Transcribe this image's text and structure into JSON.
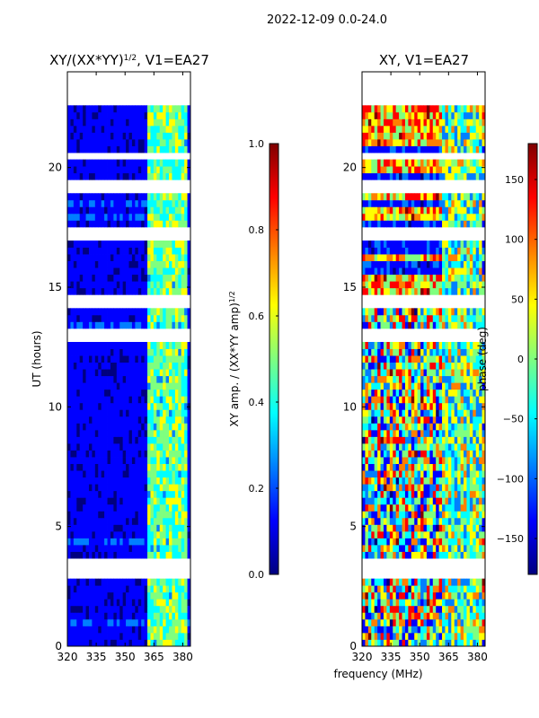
{
  "suptitle": "2022-12-09 0.0-24.0",
  "colors": {
    "jet": [
      "#00007f",
      "#0000ff",
      "#007fff",
      "#00ffff",
      "#7fff7f",
      "#ffff00",
      "#ff7f00",
      "#ff0000",
      "#7f0000"
    ],
    "background": "#ffffff"
  },
  "chart_data": [
    {
      "type": "heatmap",
      "id": "amp",
      "title_base": "XY/(XX*YY)",
      "title_exp": "1/2",
      "title_tail": ", V1=EA27",
      "ylabel": "UT (hours)",
      "xlim": [
        320,
        384
      ],
      "ylim": [
        0,
        24
      ],
      "xticks": [
        320,
        335,
        350,
        365,
        380
      ],
      "xtick_labels": [
        "320",
        "335",
        "350",
        "365",
        "380"
      ],
      "yticks": [
        0,
        5,
        10,
        15,
        20
      ],
      "ytick_labels": [
        "0",
        "5",
        "10",
        "15",
        "20"
      ],
      "data_ut_range": [
        0,
        22.6
      ],
      "white_bands_ut": [
        [
          3.0,
          3.6
        ],
        [
          12.8,
          13.0
        ],
        [
          14.3,
          14.5
        ],
        [
          17.0,
          17.3
        ],
        [
          19.1,
          19.3
        ],
        [
          20.4,
          20.6
        ]
      ],
      "rfi_band_mhz": [
        361,
        382
      ],
      "colorbar": {
        "label_base": "XY amp. / (XX*YY amp)",
        "label_exp": "1/2",
        "range": [
          0.0,
          1.0
        ],
        "ticks": [
          0.0,
          0.2,
          0.4,
          0.6,
          0.8,
          1.0
        ],
        "tick_labels": [
          "0.0",
          "0.2",
          "0.4",
          "0.6",
          "0.8",
          "1.0"
        ]
      }
    },
    {
      "type": "heatmap",
      "id": "phase",
      "title": "XY, V1=EA27",
      "xlabel": "frequency (MHz)",
      "xlim": [
        320,
        384
      ],
      "ylim": [
        0,
        24
      ],
      "xticks": [
        320,
        335,
        350,
        365,
        380
      ],
      "xtick_labels": [
        "320",
        "335",
        "350",
        "365",
        "380"
      ],
      "yticks": [
        0,
        5,
        10,
        15,
        20
      ],
      "ytick_labels": [
        "0",
        "5",
        "10",
        "15",
        "20"
      ],
      "data_ut_range": [
        0,
        22.6
      ],
      "white_bands_ut": [
        [
          3.0,
          3.6
        ],
        [
          12.8,
          13.0
        ],
        [
          14.3,
          14.5
        ],
        [
          17.0,
          17.3
        ],
        [
          19.1,
          19.3
        ],
        [
          20.4,
          20.6
        ]
      ],
      "rfi_band_mhz": [
        361,
        382
      ],
      "colorbar": {
        "label": "phase (deg)",
        "range": [
          -180,
          180
        ],
        "ticks": [
          -150,
          -100,
          -50,
          0,
          50,
          100,
          150
        ],
        "tick_labels": [
          "−150",
          "−100",
          "−50",
          "0",
          "50",
          "100",
          "150"
        ]
      }
    }
  ]
}
